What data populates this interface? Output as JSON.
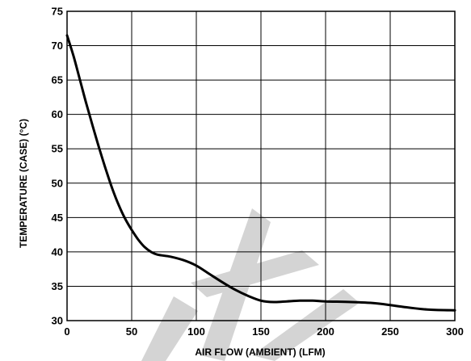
{
  "chart_data": {
    "type": "line",
    "title": "",
    "xlabel": "AIR FLOW (AMBIENT) (LFM)",
    "ylabel": "TEMPERATURE (CASE) (°C)",
    "xlim": [
      0,
      300
    ],
    "ylim": [
      30,
      75
    ],
    "xticks": [
      0,
      50,
      100,
      150,
      200,
      250,
      300
    ],
    "yticks": [
      30,
      35,
      40,
      45,
      50,
      55,
      60,
      65,
      70,
      75
    ],
    "grid": true,
    "legend": "none",
    "series": [
      {
        "x": [
          0,
          5,
          10,
          15,
          20,
          25,
          30,
          35,
          40,
          45,
          50,
          55,
          60,
          65,
          70,
          80,
          90,
          100,
          110,
          120,
          130,
          140,
          150,
          160,
          170,
          180,
          190,
          200,
          220,
          240,
          260,
          280,
          300
        ],
        "y": [
          71.5,
          68.5,
          65.0,
          61.5,
          58.2,
          55.0,
          52.0,
          49.2,
          46.8,
          44.8,
          43.2,
          41.8,
          40.7,
          40.0,
          39.6,
          39.3,
          38.8,
          38.0,
          36.8,
          35.6,
          34.5,
          33.6,
          32.9,
          32.7,
          32.8,
          32.9,
          32.9,
          32.8,
          32.7,
          32.5,
          32.0,
          31.6,
          31.5
        ]
      }
    ]
  }
}
